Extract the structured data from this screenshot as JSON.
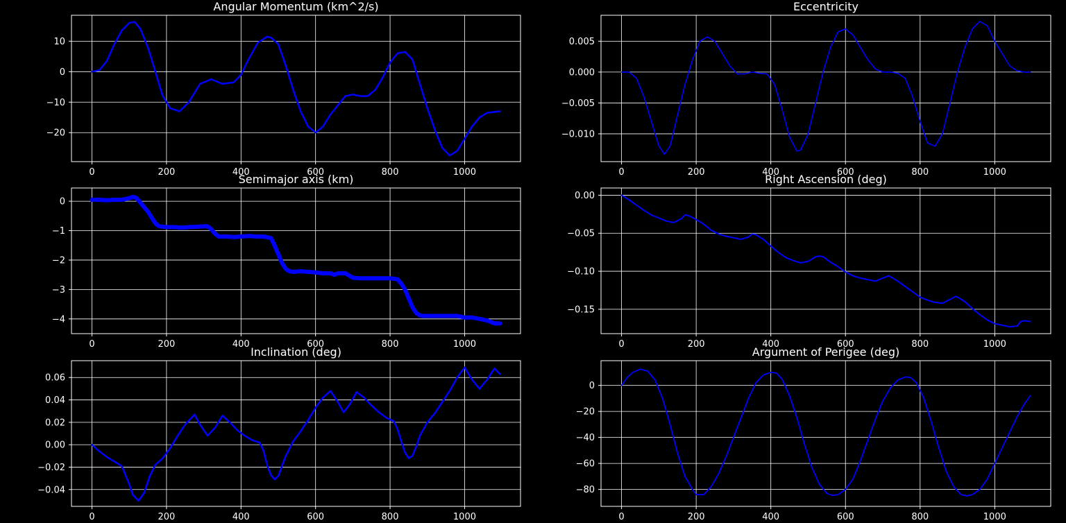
{
  "figure": {
    "background": "#000000",
    "axis_color": "#ffffff",
    "grid_color": "#ffffff",
    "line_color": "#0000ff"
  },
  "chart_data": [
    {
      "type": "line",
      "title": "Angular Momentum (km^2/s)",
      "xlim": [
        -55,
        1150
      ],
      "ylim": [
        -29.5,
        18.5
      ],
      "xticks": [
        0,
        200,
        400,
        600,
        800,
        1000
      ],
      "yticks": [
        -20,
        -10,
        0,
        10
      ],
      "xtick_labels": [
        "0",
        "200",
        "400",
        "600",
        "800",
        "1000"
      ],
      "ytick_labels": [
        "−20",
        "−10",
        "0",
        "10"
      ],
      "grid": true,
      "line_width": 2.5,
      "series": [
        {
          "x": [
            0,
            20,
            40,
            60,
            80,
            100,
            115,
            130,
            150,
            170,
            190,
            210,
            235,
            260,
            290,
            320,
            350,
            380,
            400,
            420,
            445,
            470,
            480,
            500,
            520,
            540,
            560,
            580,
            600,
            620,
            640,
            660,
            680,
            700,
            720,
            740,
            760,
            780,
            800,
            820,
            840,
            860,
            880,
            900,
            920,
            940,
            960,
            980,
            1000,
            1020,
            1040,
            1060,
            1080,
            1095
          ],
          "y": [
            0,
            0.5,
            3.5,
            9,
            13.5,
            16,
            16.3,
            14,
            8,
            0,
            -8,
            -12,
            -13,
            -10,
            -4,
            -2.5,
            -4,
            -3.5,
            -1,
            4,
            9.5,
            11.5,
            11.2,
            9,
            2,
            -6,
            -13,
            -18,
            -20,
            -18,
            -14,
            -11,
            -8,
            -7.5,
            -8,
            -8,
            -6,
            -2,
            3,
            6,
            6.5,
            4,
            -4,
            -12,
            -19,
            -25,
            -27.5,
            -26,
            -22,
            -18,
            -15,
            -13.5,
            -13.2,
            -13
          ]
        }
      ]
    },
    {
      "type": "line",
      "title": "Eccentricity",
      "xlim": [
        -55,
        1150
      ],
      "ylim": [
        -0.0145,
        0.0092
      ],
      "xticks": [
        0,
        200,
        400,
        600,
        800,
        1000
      ],
      "yticks": [
        -0.01,
        -0.005,
        0.0,
        0.005
      ],
      "xtick_labels": [
        "0",
        "200",
        "400",
        "600",
        "800",
        "1000"
      ],
      "ytick_labels": [
        "−0.010",
        "−0.005",
        "0.000",
        "0.005"
      ],
      "grid": true,
      "line_width": 1.6,
      "series": [
        {
          "x": [
            0,
            20,
            40,
            60,
            80,
            100,
            115,
            130,
            150,
            170,
            190,
            210,
            230,
            250,
            270,
            290,
            310,
            330,
            350,
            370,
            390,
            410,
            430,
            450,
            470,
            480,
            500,
            520,
            540,
            560,
            580,
            600,
            620,
            640,
            660,
            680,
            700,
            720,
            740,
            760,
            780,
            800,
            820,
            840,
            860,
            880,
            900,
            920,
            940,
            960,
            980,
            1000,
            1020,
            1040,
            1060,
            1080,
            1095
          ],
          "y": [
            0,
            0,
            -0.001,
            -0.004,
            -0.008,
            -0.012,
            -0.0133,
            -0.012,
            -0.007,
            -0.002,
            0.002,
            0.005,
            0.0057,
            0.005,
            0.003,
            0.001,
            -0.0003,
            -0.0003,
            0,
            -0.0002,
            -0.0003,
            -0.002,
            -0.006,
            -0.0105,
            -0.0128,
            -0.0126,
            -0.01,
            -0.005,
            0,
            0.004,
            0.0065,
            0.007,
            0.006,
            0.004,
            0.002,
            0.0005,
            0,
            0,
            -0.0002,
            -0.001,
            -0.004,
            -0.008,
            -0.0115,
            -0.012,
            -0.01,
            -0.005,
            0,
            0.004,
            0.007,
            0.0082,
            0.0075,
            0.005,
            0.003,
            0.001,
            0.0002,
            0,
            0
          ]
        }
      ]
    },
    {
      "type": "line",
      "title": "Semimajor axis (km)",
      "xlim": [
        -55,
        1150
      ],
      "ylim": [
        -4.5,
        0.45
      ],
      "xticks": [
        0,
        200,
        400,
        600,
        800,
        1000
      ],
      "yticks": [
        -4,
        -3,
        -2,
        -1,
        0
      ],
      "xtick_labels": [
        "0",
        "200",
        "400",
        "600",
        "800",
        "1000"
      ],
      "ytick_labels": [
        "−4",
        "−3",
        "−2",
        "−1",
        "0"
      ],
      "grid": true,
      "line_width": 6,
      "series": [
        {
          "x": [
            0,
            20,
            40,
            60,
            80,
            100,
            110,
            120,
            130,
            140,
            150,
            160,
            170,
            180,
            200,
            220,
            240,
            260,
            280,
            300,
            310,
            320,
            330,
            340,
            360,
            380,
            400,
            420,
            440,
            460,
            480,
            490,
            500,
            510,
            520,
            530,
            540,
            560,
            580,
            600,
            620,
            640,
            650,
            660,
            680,
            700,
            720,
            740,
            760,
            780,
            800,
            820,
            830,
            840,
            850,
            860,
            870,
            880,
            890,
            900,
            920,
            940,
            960,
            980,
            1000,
            1020,
            1040,
            1060,
            1080,
            1095
          ],
          "y": [
            0.05,
            0.05,
            0.03,
            0.05,
            0.05,
            0.1,
            0.15,
            0.1,
            -0.05,
            -0.2,
            -0.35,
            -0.55,
            -0.75,
            -0.85,
            -0.88,
            -0.88,
            -0.9,
            -0.88,
            -0.87,
            -0.85,
            -0.85,
            -0.95,
            -1.1,
            -1.2,
            -1.2,
            -1.22,
            -1.2,
            -1.18,
            -1.2,
            -1.2,
            -1.25,
            -1.5,
            -1.8,
            -2.1,
            -2.3,
            -2.38,
            -2.4,
            -2.38,
            -2.4,
            -2.42,
            -2.45,
            -2.45,
            -2.5,
            -2.45,
            -2.45,
            -2.6,
            -2.62,
            -2.62,
            -2.62,
            -2.62,
            -2.62,
            -2.65,
            -2.8,
            -3.0,
            -3.3,
            -3.6,
            -3.8,
            -3.88,
            -3.9,
            -3.9,
            -3.9,
            -3.9,
            -3.9,
            -3.9,
            -3.95,
            -3.95,
            -4.0,
            -4.05,
            -4.15,
            -4.15
          ]
        }
      ]
    },
    {
      "type": "line",
      "title": "Right Ascension (deg)",
      "xlim": [
        -55,
        1150
      ],
      "ylim": [
        -0.182,
        0.0095
      ],
      "xticks": [
        0,
        200,
        400,
        600,
        800,
        1000
      ],
      "yticks": [
        -0.15,
        -0.1,
        -0.05,
        0.0
      ],
      "xtick_labels": [
        "0",
        "200",
        "400",
        "600",
        "800",
        "1000"
      ],
      "ytick_labels": [
        "−0.15",
        "−0.10",
        "−0.05",
        "0.00"
      ],
      "grid": true,
      "line_width": 2,
      "series": [
        {
          "x": [
            0,
            20,
            40,
            60,
            80,
            100,
            120,
            140,
            160,
            170,
            180,
            200,
            220,
            240,
            260,
            280,
            300,
            320,
            340,
            350,
            360,
            380,
            400,
            420,
            440,
            460,
            480,
            500,
            520,
            530,
            540,
            560,
            580,
            600,
            620,
            640,
            660,
            680,
            700,
            715,
            720,
            740,
            760,
            780,
            800,
            820,
            840,
            860,
            880,
            895,
            900,
            920,
            940,
            960,
            980,
            1000,
            1020,
            1040,
            1060,
            1070,
            1080,
            1095
          ],
          "y": [
            0,
            -0.006,
            -0.013,
            -0.02,
            -0.026,
            -0.03,
            -0.034,
            -0.036,
            -0.031,
            -0.026,
            -0.027,
            -0.032,
            -0.038,
            -0.046,
            -0.051,
            -0.054,
            -0.056,
            -0.058,
            -0.055,
            -0.051,
            -0.052,
            -0.058,
            -0.067,
            -0.075,
            -0.082,
            -0.086,
            -0.089,
            -0.087,
            -0.081,
            -0.08,
            -0.081,
            -0.088,
            -0.094,
            -0.101,
            -0.106,
            -0.109,
            -0.111,
            -0.113,
            -0.109,
            -0.106,
            -0.107,
            -0.113,
            -0.12,
            -0.127,
            -0.134,
            -0.138,
            -0.141,
            -0.142,
            -0.137,
            -0.133,
            -0.134,
            -0.14,
            -0.149,
            -0.157,
            -0.164,
            -0.169,
            -0.171,
            -0.173,
            -0.172,
            -0.166,
            -0.165,
            -0.166
          ]
        }
      ]
    },
    {
      "type": "line",
      "title": "Inclination (deg)",
      "xlim": [
        -55,
        1150
      ],
      "ylim": [
        -0.055,
        0.075
      ],
      "xticks": [
        0,
        200,
        400,
        600,
        800,
        1000
      ],
      "yticks": [
        -0.04,
        -0.02,
        0.0,
        0.02,
        0.04,
        0.06
      ],
      "xtick_labels": [
        "0",
        "200",
        "400",
        "600",
        "800",
        "1000"
      ],
      "ytick_labels": [
        "−0.04",
        "−0.02",
        "0.00",
        "0.02",
        "0.04",
        "0.06"
      ],
      "grid": true,
      "line_width": 2.5,
      "series": [
        {
          "x": [
            0,
            20,
            40,
            60,
            80,
            100,
            110,
            125,
            140,
            155,
            170,
            190,
            210,
            230,
            250,
            270,
            275,
            290,
            310,
            330,
            350,
            370,
            390,
            410,
            430,
            450,
            460,
            470,
            480,
            490,
            500,
            520,
            540,
            560,
            580,
            600,
            620,
            640,
            660,
            675,
            690,
            710,
            730,
            750,
            770,
            790,
            810,
            820,
            830,
            840,
            850,
            860,
            870,
            880,
            900,
            920,
            940,
            960,
            980,
            1000,
            1020,
            1040,
            1060,
            1080,
            1095
          ],
          "y": [
            0,
            -0.006,
            -0.011,
            -0.015,
            -0.019,
            -0.035,
            -0.045,
            -0.05,
            -0.043,
            -0.028,
            -0.018,
            -0.012,
            -0.003,
            0.008,
            0.018,
            0.025,
            0.027,
            0.018,
            0.008,
            0.015,
            0.026,
            0.02,
            0.013,
            0.008,
            0.004,
            0.002,
            -0.005,
            -0.018,
            -0.027,
            -0.031,
            -0.028,
            -0.01,
            0.003,
            0.012,
            0.022,
            0.033,
            0.042,
            0.048,
            0.038,
            0.029,
            0.035,
            0.047,
            0.042,
            0.035,
            0.029,
            0.024,
            0.021,
            0.014,
            0.003,
            -0.007,
            -0.012,
            -0.01,
            -0.002,
            0.008,
            0.02,
            0.028,
            0.038,
            0.048,
            0.06,
            0.069,
            0.058,
            0.05,
            0.058,
            0.068,
            0.063
          ]
        }
      ]
    },
    {
      "type": "line",
      "title": "Argument of Perigee (deg)",
      "xlim": [
        -55,
        1150
      ],
      "ylim": [
        -93,
        19
      ],
      "xticks": [
        0,
        200,
        400,
        600,
        800,
        1000
      ],
      "yticks": [
        -80,
        -60,
        -40,
        -20,
        0
      ],
      "xtick_labels": [
        "0",
        "200",
        "400",
        "600",
        "800",
        "1000"
      ],
      "ytick_labels": [
        "−80",
        "−60",
        "−40",
        "−20",
        "0"
      ],
      "grid": true,
      "line_width": 1.8,
      "series": [
        {
          "x": [
            0,
            15,
            30,
            50,
            70,
            90,
            110,
            130,
            150,
            170,
            190,
            200,
            220,
            240,
            260,
            280,
            300,
            320,
            340,
            360,
            380,
            400,
            415,
            430,
            450,
            470,
            490,
            510,
            530,
            550,
            565,
            580,
            600,
            620,
            640,
            660,
            680,
            700,
            720,
            740,
            760,
            775,
            790,
            810,
            830,
            850,
            870,
            890,
            910,
            925,
            940,
            960,
            980,
            1000,
            1020,
            1040,
            1060,
            1080,
            1095
          ],
          "y": [
            0,
            6,
            10,
            12.5,
            11,
            4,
            -10,
            -30,
            -52,
            -70,
            -80,
            -84,
            -84,
            -78,
            -68,
            -55,
            -40,
            -25,
            -10,
            2,
            8,
            10,
            9.5,
            5,
            -8,
            -25,
            -45,
            -63,
            -76,
            -83,
            -84.5,
            -84,
            -80,
            -72,
            -58,
            -42,
            -26,
            -12,
            -2,
            4,
            6.5,
            6,
            2,
            -10,
            -28,
            -48,
            -66,
            -78,
            -84,
            -85,
            -84,
            -80,
            -72,
            -60,
            -48,
            -36,
            -24,
            -14,
            -8
          ]
        }
      ]
    }
  ]
}
